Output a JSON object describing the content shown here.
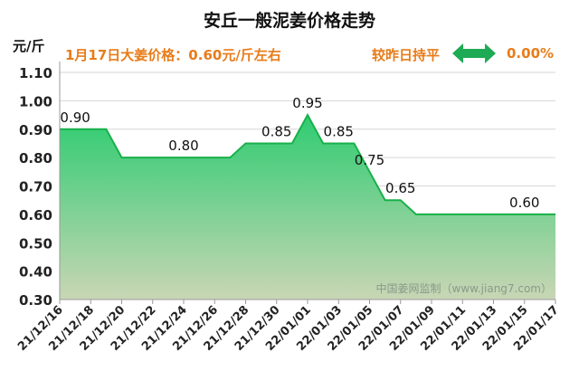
{
  "title": "安丘一般泥姜价格走势",
  "unit_label": "元/斤",
  "info": {
    "price_text": "1月17日大姜价格：0.60元/斤左右",
    "trend_text": "较昨日持平",
    "change_pct": "0.00%"
  },
  "colors": {
    "accent_orange": "#e87c1a",
    "arrow_green": "#1faa55",
    "area_top": "#2ecc71",
    "area_bottom": "#c9d6b5",
    "line": "#18b04a"
  },
  "chart_data": {
    "type": "area",
    "title": "安丘一般泥姜价格走势",
    "ylabel": "元/斤",
    "ylim": [
      0.3,
      1.1
    ],
    "yticks": [
      "0.30",
      "0.40",
      "0.50",
      "0.60",
      "0.70",
      "0.80",
      "0.90",
      "1.00",
      "1.10"
    ],
    "xtick_labels": [
      "21/12/16",
      "21/12/18",
      "21/12/20",
      "21/12/22",
      "21/12/24",
      "21/12/26",
      "21/12/28",
      "21/12/30",
      "22/01/01",
      "22/01/03",
      "22/01/05",
      "22/01/07",
      "22/01/09",
      "22/01/11",
      "22/01/13",
      "22/01/15",
      "22/01/17"
    ],
    "x": [
      "21/12/16",
      "21/12/17",
      "21/12/18",
      "21/12/19",
      "21/12/20",
      "21/12/21",
      "21/12/22",
      "21/12/23",
      "21/12/24",
      "21/12/25",
      "21/12/26",
      "21/12/27",
      "21/12/28",
      "21/12/29",
      "21/12/30",
      "21/12/31",
      "22/01/01",
      "22/01/02",
      "22/01/03",
      "22/01/04",
      "22/01/05",
      "22/01/06",
      "22/01/07",
      "22/01/08",
      "22/01/09",
      "22/01/10",
      "22/01/11",
      "22/01/12",
      "22/01/13",
      "22/01/14",
      "22/01/15",
      "22/01/16",
      "22/01/17"
    ],
    "values": [
      0.9,
      0.9,
      0.9,
      0.9,
      0.8,
      0.8,
      0.8,
      0.8,
      0.8,
      0.8,
      0.8,
      0.8,
      0.85,
      0.85,
      0.85,
      0.85,
      0.95,
      0.85,
      0.85,
      0.85,
      0.75,
      0.65,
      0.65,
      0.6,
      0.6,
      0.6,
      0.6,
      0.6,
      0.6,
      0.6,
      0.6,
      0.6,
      0.6
    ],
    "data_labels": [
      {
        "index": 1,
        "text": "0.90"
      },
      {
        "index": 8,
        "text": "0.80"
      },
      {
        "index": 14,
        "text": "0.85"
      },
      {
        "index": 16,
        "text": "0.95"
      },
      {
        "index": 18,
        "text": "0.85"
      },
      {
        "index": 20,
        "text": "0.75"
      },
      {
        "index": 22,
        "text": "0.65"
      },
      {
        "index": 30,
        "text": "0.60"
      }
    ],
    "grid": true,
    "watermark": "中国姜网监制（www.jiang7.com）"
  }
}
